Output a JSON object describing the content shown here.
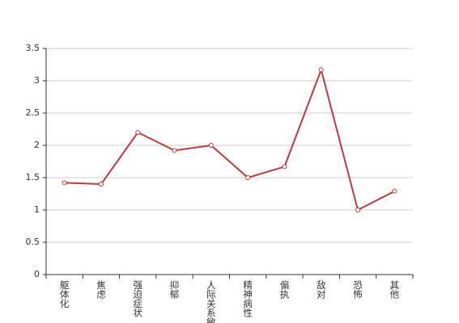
{
  "chart_data": {
    "type": "line",
    "categories": [
      "躯体化",
      "焦虑",
      "强迫症状",
      "抑郁",
      "人际关系敏感",
      "精神病性",
      "偏执",
      "敌对",
      "恐怖",
      "其他"
    ],
    "series": [
      {
        "color": "#c0393b",
        "values": [
          1.42,
          1.4,
          2.2,
          1.92,
          2.0,
          1.5,
          1.67,
          3.17,
          1.0,
          1.29
        ]
      }
    ],
    "ylim": [
      0,
      3.5
    ],
    "yticks": [
      0,
      0.5,
      1,
      1.5,
      2,
      2.5,
      3,
      3.5
    ],
    "grid": true
  }
}
